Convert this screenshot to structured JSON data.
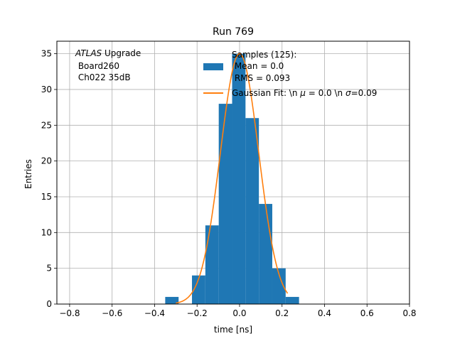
{
  "chart_data": {
    "type": "bar",
    "title": "Run 769",
    "xlabel": "time [ns]",
    "ylabel": "Entries",
    "xlim": [
      -0.86,
      0.8
    ],
    "ylim": [
      0,
      36.75
    ],
    "xticks": [
      -0.8,
      -0.6,
      -0.4,
      -0.2,
      0.0,
      0.2,
      0.4,
      0.6,
      0.8
    ],
    "xtick_labels": [
      "−0.8",
      "−0.6",
      "−0.4",
      "−0.2",
      "0.0",
      "0.2",
      "0.4",
      "0.6",
      "0.8"
    ],
    "yticks": [
      0,
      5,
      10,
      15,
      20,
      25,
      30,
      35
    ],
    "grid": true,
    "bar_color": "#1f77b4",
    "fit_color": "#ff7f0e",
    "bins": [
      {
        "x0": -0.35,
        "x1": -0.287,
        "count": 1
      },
      {
        "x0": -0.224,
        "x1": -0.161,
        "count": 4
      },
      {
        "x0": -0.161,
        "x1": -0.098,
        "count": 11
      },
      {
        "x0": -0.098,
        "x1": -0.035,
        "count": 28
      },
      {
        "x0": -0.035,
        "x1": 0.028,
        "count": 35
      },
      {
        "x0": 0.028,
        "x1": 0.091,
        "count": 26
      },
      {
        "x0": 0.091,
        "x1": 0.154,
        "count": 14
      },
      {
        "x0": 0.154,
        "x1": 0.217,
        "count": 5
      },
      {
        "x0": 0.217,
        "x1": 0.28,
        "count": 1
      }
    ],
    "fit": {
      "amplitude": 35,
      "mu": 0.0,
      "sigma": 0.09,
      "x_range": [
        -0.3,
        0.226
      ]
    },
    "annotation": {
      "italic": "ATLAS",
      "line1_rest": " Upgrade",
      "line2": " Board260",
      "line3": " Ch022 35dB"
    },
    "legend": {
      "placement": "top-right",
      "samples_label": "Samples (125):",
      "samples_mean": " Mean = 0.0",
      "samples_rms": " RMS = 0.093",
      "fit_label_a": "Gaussian Fit: \\n ",
      "fit_mu_sym": "μ",
      "fit_label_b": " = 0.0 \\n ",
      "fit_sigma_sym": "σ",
      "fit_label_c": "=0.09"
    }
  }
}
